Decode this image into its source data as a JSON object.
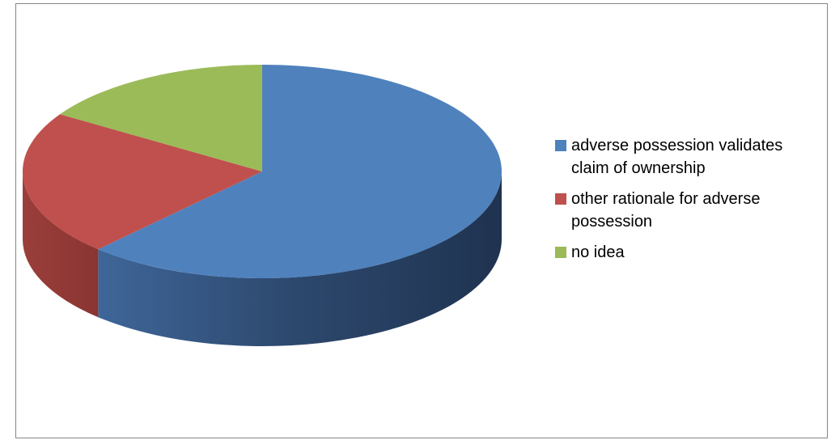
{
  "chart_data": {
    "type": "pie",
    "title": "",
    "categories": [
      "adverse possession validates claim of ownership",
      "other rationale for adverse possession",
      "no idea"
    ],
    "values": [
      62,
      22,
      16
    ],
    "colors": [
      "#4f81bd",
      "#c0504d",
      "#9bbb59"
    ],
    "legend_position": "right",
    "style": "3d"
  },
  "legend": {
    "items": [
      {
        "label": "adverse possession validates claim of ownership",
        "color": "#4f81bd"
      },
      {
        "label": "other rationale for adverse possession",
        "color": "#c0504d"
      },
      {
        "label": "no idea",
        "color": "#9bbb59"
      }
    ]
  }
}
